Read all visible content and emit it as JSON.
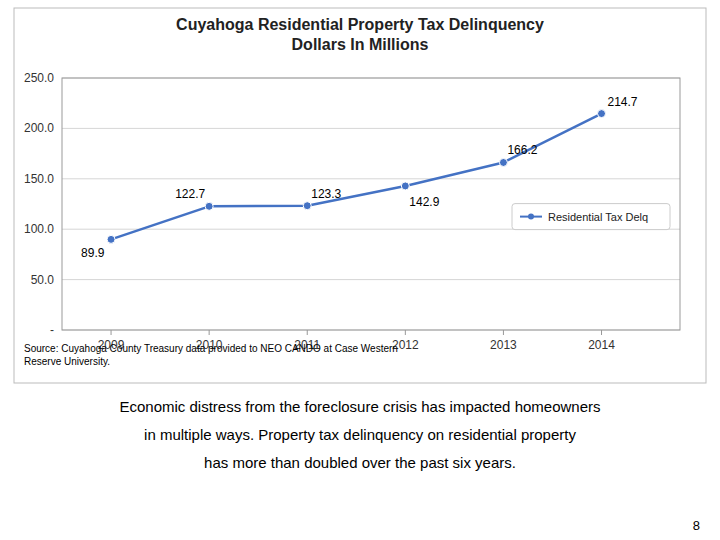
{
  "chart_data": {
    "type": "line",
    "title": "Cuyahoga Residential Property Tax Delinquency\nDollars In Millions",
    "x": [
      2009,
      2010,
      2011,
      2012,
      2013,
      2014
    ],
    "series": [
      {
        "name": "Residential Tax Delq",
        "color": "#4472C4",
        "marker": "circle",
        "values": [
          89.9,
          122.7,
          123.3,
          142.9,
          166.2,
          214.7
        ]
      }
    ],
    "xlim": [
      2008.5,
      2014.8
    ],
    "xticks": [
      2009,
      2010,
      2011,
      2012,
      2013,
      2014
    ],
    "ylim": [
      0,
      250
    ],
    "yticks": [
      {
        "value": 0,
        "label": "-"
      },
      {
        "value": 50,
        "label": "50.0"
      },
      {
        "value": 100,
        "label": "100.0"
      },
      {
        "value": 150,
        "label": "150.0"
      },
      {
        "value": 200,
        "label": "200.0"
      },
      {
        "value": 250,
        "label": "250.0"
      }
    ],
    "grid": true,
    "legend": "right",
    "data_labels": true,
    "annotations": [
      "Source:  Cuyahoga County Treasury data provided to NEO CANDO at Case Western\nReserve University.",
      "Economic distress from the foreclosure crisis has impacted homeowners",
      "in multiple ways.  Property tax delinquency on residential property",
      "has more than doubled over the past six years.",
      "8"
    ]
  }
}
